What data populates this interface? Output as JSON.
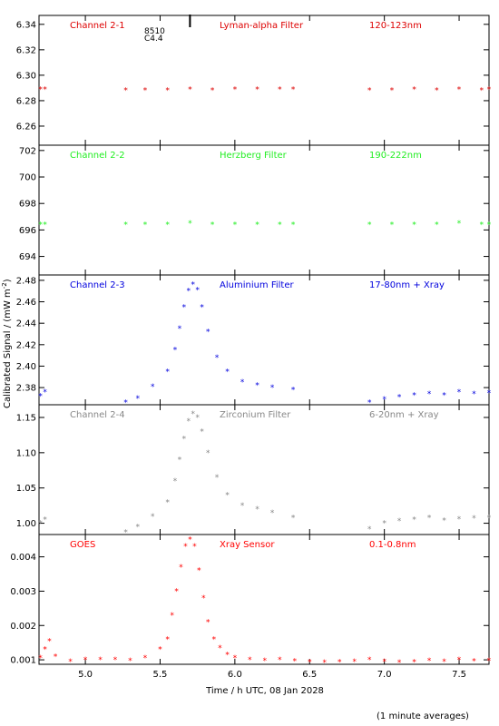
{
  "figure": {
    "xlabel": "Time / h UTC, 08 Jan 2028",
    "ylabel": "Calibrated Signal / (mW m",
    "ylabel_sup": "-2",
    "ylabel_close": ")",
    "footer": "(1 minute averages)",
    "event_labels": [
      "8510",
      "C4.4"
    ]
  },
  "chart_data": [
    {
      "type": "scatter",
      "label": "Channel 2-1",
      "filter": "Lyman-alpha Filter",
      "band": "120-123nm",
      "color": "#dd0000",
      "ylim": [
        6.245,
        6.347
      ],
      "yticks": [
        6.26,
        6.28,
        6.3,
        6.32,
        6.34
      ],
      "ytick_decimals": 2,
      "x": [
        4.7,
        4.73,
        5.27,
        5.4,
        5.55,
        5.7,
        5.85,
        6.0,
        6.15,
        6.3,
        6.39,
        6.9,
        7.05,
        7.2,
        7.35,
        7.5,
        7.65,
        7.7
      ],
      "y": [
        6.289,
        6.289,
        6.288,
        6.288,
        6.288,
        6.289,
        6.288,
        6.289,
        6.289,
        6.289,
        6.289,
        6.288,
        6.288,
        6.289,
        6.288,
        6.289,
        6.288,
        6.289
      ]
    },
    {
      "type": "scatter",
      "label": "Channel 2-2",
      "filter": "Herzberg Filter",
      "band": "190-222nm",
      "color": "#22ee22",
      "ylim": [
        692.6,
        702.4
      ],
      "yticks": [
        694,
        696,
        698,
        700,
        702
      ],
      "ytick_decimals": 0,
      "x": [
        4.7,
        4.73,
        5.27,
        5.4,
        5.55,
        5.7,
        5.85,
        6.0,
        6.15,
        6.3,
        6.39,
        6.9,
        7.05,
        7.2,
        7.35,
        7.5,
        7.65,
        7.7
      ],
      "y": [
        696.4,
        696.4,
        696.4,
        696.4,
        696.4,
        696.5,
        696.4,
        696.4,
        696.4,
        696.4,
        696.4,
        696.4,
        696.4,
        696.4,
        696.4,
        696.5,
        696.4,
        696.4
      ]
    },
    {
      "type": "scatter",
      "label": "Channel 2-3",
      "filter": "Aluminium Filter",
      "band": "17-80nm + Xray",
      "color": "#0000dd",
      "ylim": [
        2.364,
        2.485
      ],
      "yticks": [
        2.38,
        2.4,
        2.42,
        2.44,
        2.46,
        2.48
      ],
      "ytick_decimals": 2,
      "x": [
        4.7,
        4.73,
        5.27,
        5.35,
        5.45,
        5.55,
        5.6,
        5.63,
        5.66,
        5.69,
        5.72,
        5.75,
        5.78,
        5.82,
        5.88,
        5.95,
        6.05,
        6.15,
        6.25,
        6.39,
        6.9,
        7.0,
        7.1,
        7.2,
        7.3,
        7.4,
        7.5,
        7.6,
        7.7
      ],
      "y": [
        2.372,
        2.376,
        2.366,
        2.37,
        2.381,
        2.395,
        2.415,
        2.435,
        2.455,
        2.47,
        2.476,
        2.471,
        2.455,
        2.432,
        2.408,
        2.395,
        2.385,
        2.382,
        2.38,
        2.378,
        2.366,
        2.369,
        2.371,
        2.373,
        2.374,
        2.373,
        2.376,
        2.374,
        2.375
      ]
    },
    {
      "type": "scatter",
      "label": "Channel 2-4",
      "filter": "Zirconium Filter",
      "band": "6-20nm + Xray",
      "color": "#888888",
      "ylim": [
        0.984,
        1.168
      ],
      "yticks": [
        1.0,
        1.05,
        1.1,
        1.15
      ],
      "ytick_decimals": 2,
      "x": [
        4.7,
        4.73,
        5.27,
        5.35,
        5.45,
        5.55,
        5.6,
        5.63,
        5.66,
        5.69,
        5.72,
        5.75,
        5.78,
        5.82,
        5.88,
        5.95,
        6.05,
        6.15,
        6.25,
        6.39,
        6.9,
        7.0,
        7.1,
        7.2,
        7.3,
        7.4,
        7.5,
        7.6,
        7.7
      ],
      "y": [
        1.0,
        1.005,
        0.987,
        0.995,
        1.01,
        1.03,
        1.06,
        1.09,
        1.12,
        1.145,
        1.155,
        1.15,
        1.13,
        1.1,
        1.065,
        1.04,
        1.025,
        1.02,
        1.015,
        1.008,
        0.992,
        1.0,
        1.003,
        1.005,
        1.008,
        1.004,
        1.006,
        1.007,
        1.008
      ]
    },
    {
      "type": "scatter",
      "label": "GOES",
      "filter": "Xray Sensor",
      "band": "0.1-0.8nm",
      "color": "#ff0000",
      "ylim": [
        0.00087,
        0.00465
      ],
      "yticks": [
        0.001,
        0.002,
        0.003,
        0.004
      ],
      "ytick_decimals": 3,
      "x": [
        4.7,
        4.73,
        4.76,
        4.8,
        4.9,
        5.0,
        5.1,
        5.2,
        5.3,
        5.4,
        5.5,
        5.55,
        5.58,
        5.61,
        5.64,
        5.67,
        5.7,
        5.73,
        5.76,
        5.79,
        5.82,
        5.86,
        5.9,
        5.95,
        6.0,
        6.1,
        6.2,
        6.3,
        6.4,
        6.5,
        6.6,
        6.7,
        6.8,
        6.9,
        7.0,
        7.1,
        7.2,
        7.3,
        7.4,
        7.5,
        7.6,
        7.7
      ],
      "y": [
        0.00105,
        0.0013,
        0.00155,
        0.0011,
        0.00095,
        0.001,
        0.001,
        0.001,
        0.00098,
        0.00105,
        0.0013,
        0.0016,
        0.0023,
        0.003,
        0.0037,
        0.0043,
        0.0045,
        0.0043,
        0.0036,
        0.0028,
        0.0021,
        0.0016,
        0.00135,
        0.00115,
        0.00105,
        0.001,
        0.00098,
        0.001,
        0.00096,
        0.00093,
        0.00092,
        0.00093,
        0.00095,
        0.001,
        0.00095,
        0.00092,
        0.00093,
        0.00098,
        0.00095,
        0.001,
        0.00096,
        0.00098
      ]
    }
  ],
  "x_axis": {
    "xlim": [
      4.69,
      7.7
    ],
    "ticks": [
      5.0,
      5.5,
      6.0,
      6.5,
      7.0,
      7.5
    ],
    "tick_labels": [
      "5.0",
      "5.5",
      "6.0",
      "6.5",
      "7.0",
      "7.5"
    ]
  },
  "flare_marker_time": 5.7
}
